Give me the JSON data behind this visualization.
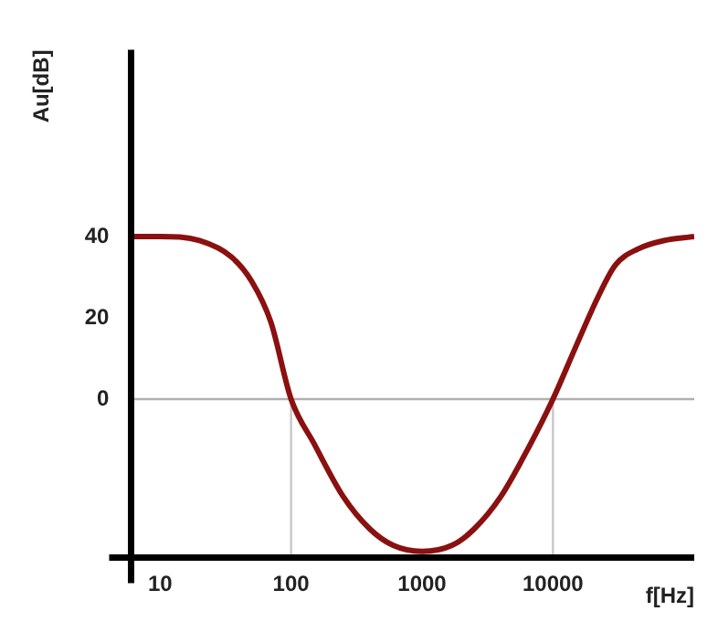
{
  "chart_data": {
    "type": "line",
    "xlabel": "f[Hz]",
    "ylabel": "Au[dB]",
    "log": "x",
    "x": [
      6,
      10,
      20,
      35,
      50,
      70,
      100,
      150,
      250,
      400,
      600,
      1000,
      1700,
      2500,
      4000,
      6500,
      10000,
      15000,
      22000,
      30000,
      45000,
      70000,
      120000
    ],
    "series": [
      {
        "color": "#8b1010",
        "values": [
          40,
          40,
          39,
          35,
          29,
          19,
          0,
          -11,
          -24,
          -32,
          -36,
          -37.5,
          -36,
          -32,
          -24,
          -12,
          0,
          13,
          25,
          33,
          37,
          39,
          40
        ]
      }
    ],
    "xlim": [
      6,
      120000
    ],
    "xticks": [
      10,
      100,
      1000,
      10000
    ],
    "ylim": [
      -39,
      86
    ],
    "yticks": [
      0,
      20,
      40
    ],
    "ref_lines": [
      {
        "axis": "y",
        "value": 0,
        "color": "#b0b0b0"
      },
      {
        "axis": "x",
        "value": 100,
        "color": "#c8c8c8"
      },
      {
        "axis": "x",
        "value": 10000,
        "color": "#c8c8c8"
      }
    ],
    "grid": false,
    "legend": false,
    "marker": "none",
    "line_style": "solid"
  }
}
